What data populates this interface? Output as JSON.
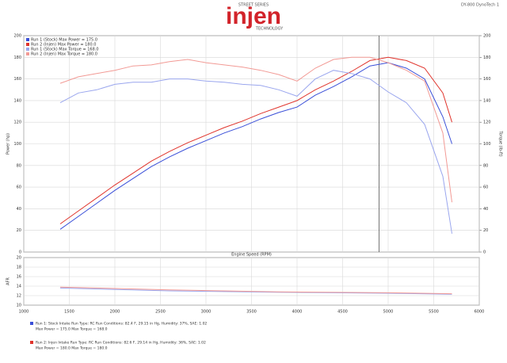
{
  "header": {
    "brand": "injen",
    "series_name": "STREET SERIES",
    "tagline": "TECHNOLOGY",
    "info": "DY-800 DynoTech 1"
  },
  "chart_data": [
    {
      "type": "line",
      "xlabel": "Engine Speed (RPM)",
      "ylabel": "Power (hp)",
      "y2label": "Torque (lb-ft)",
      "x": [
        1400,
        1600,
        1800,
        2000,
        2200,
        2400,
        2600,
        2800,
        3000,
        3200,
        3400,
        3600,
        3800,
        4000,
        4200,
        4400,
        4600,
        4800,
        5000,
        5200,
        5400,
        5600,
        5700
      ],
      "xlim": [
        1000,
        6000
      ],
      "xticks": [
        1000,
        1500,
        2000,
        2500,
        3000,
        3500,
        4000,
        4500,
        5000,
        5500,
        6000
      ],
      "ylim": [
        0,
        200
      ],
      "yticks": [
        0,
        20,
        40,
        60,
        80,
        100,
        120,
        140,
        160,
        180,
        200
      ],
      "y2lim": [
        0,
        200
      ],
      "y2ticks": [
        0,
        20,
        40,
        60,
        80,
        100,
        120,
        140,
        160,
        180,
        200
      ],
      "grid": true,
      "cursor_x": 4900,
      "series": [
        {
          "name": "Run 1 (Stock) Max Power = 175.0",
          "color": "#3a4fd8",
          "values": [
            21,
            33,
            45,
            57,
            68,
            79,
            88,
            96,
            103,
            110,
            116,
            123,
            129,
            134,
            145,
            153,
            162,
            172,
            175,
            170,
            160,
            125,
            100
          ]
        },
        {
          "name": "Run 2 (Injen) Max Power = 180.0",
          "color": "#e0342c",
          "values": [
            26,
            38,
            50,
            62,
            73,
            84,
            93,
            101,
            108,
            115,
            121,
            128,
            134,
            140,
            150,
            158,
            167,
            177,
            180,
            177,
            170,
            147,
            120
          ]
        },
        {
          "name": "Run 1 (Stock) Max Torque = 168.0",
          "color": "#9aa6ee",
          "axis": "y2",
          "values": [
            138,
            147,
            150,
            155,
            157,
            157,
            160,
            160,
            158,
            157,
            155,
            154,
            150,
            144,
            160,
            168,
            165,
            160,
            148,
            138,
            118,
            70,
            17
          ]
        },
        {
          "name": "Run 2 (Injen) Max Torque = 180.0",
          "color": "#f29a95",
          "axis": "y2",
          "values": [
            156,
            162,
            165,
            168,
            172,
            173,
            176,
            178,
            175,
            173,
            171,
            168,
            164,
            158,
            170,
            178,
            180,
            180,
            175,
            168,
            158,
            110,
            46
          ]
        }
      ]
    },
    {
      "type": "line",
      "ylabel": "AFR",
      "x": [
        1400,
        2600,
        3800,
        5000,
        5700
      ],
      "xlim": [
        1000,
        6000
      ],
      "xticks": [
        1000,
        1500,
        2000,
        2500,
        3000,
        3500,
        4000,
        4500,
        5000,
        5500,
        6000
      ],
      "ylim": [
        10,
        20
      ],
      "yticks": [
        10,
        12,
        14,
        16,
        18,
        20
      ],
      "grid": true,
      "series": [
        {
          "name": "Run 1 AFR",
          "color": "#9aa6ee",
          "values": [
            13.6,
            13.0,
            12.7,
            12.5,
            12.3
          ]
        },
        {
          "name": "Run 2 AFR",
          "color": "#f29a95",
          "values": [
            13.8,
            13.2,
            12.8,
            12.6,
            12.4
          ]
        }
      ]
    }
  ],
  "notes": [
    {
      "color": "#3a4fd8",
      "lines": [
        "Run 1: Stock Intake  Run Type: RC  Run Conditions: 82.4 F, 29.15 in Hg, Humidity: 37%, SAE: 1.02",
        "Max Power = 175.0  Max Torque = 168.0"
      ]
    },
    {
      "color": "#e0342c",
      "lines": [
        "Run 2: Injen Intake  Run Type: RC  Run Conditions: 82.6 F, 29.14 in Hg, Humidity: 36%, SAE: 1.02",
        "Max Power = 180.0  Max Torque = 180.0"
      ]
    }
  ]
}
